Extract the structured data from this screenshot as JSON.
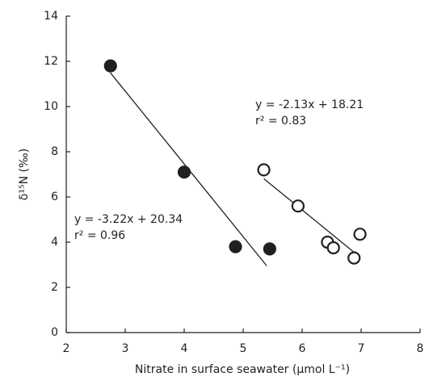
{
  "chart_data": {
    "type": "scatter",
    "x_label": "Nitrate in surface seawater (µmol L⁻¹)",
    "y_label": "δ¹⁵N (‰)",
    "xlim": [
      2,
      8
    ],
    "xticks": [
      2,
      3,
      4,
      5,
      6,
      7,
      8
    ],
    "ylim": [
      0,
      14
    ],
    "yticks": [
      0,
      2,
      4,
      6,
      8,
      10,
      12,
      14
    ],
    "grid": false,
    "series": [
      {
        "color": "#231f20",
        "fill": "#231f20",
        "x": [
          2.75,
          4.0,
          4.87,
          5.45
        ],
        "values": [
          11.8,
          7.1,
          3.8,
          3.7
        ]
      },
      {
        "color": "#231f20",
        "fill": "#ffffff",
        "x": [
          5.35,
          5.93,
          6.43,
          6.53,
          6.88,
          6.98
        ],
        "values": [
          7.2,
          5.6,
          4.0,
          3.75,
          3.3,
          4.35
        ]
      }
    ],
    "fit_lines": [
      {
        "x": [
          2.75,
          5.4
        ],
        "values": [
          11.49,
          2.95
        ]
      },
      {
        "x": [
          5.35,
          6.9
        ],
        "values": [
          6.81,
          3.51
        ]
      }
    ],
    "annotations": [
      {
        "equation": "y = -3.22x + 20.34",
        "r2": "r² = 0.96"
      },
      {
        "equation": "y = -2.13x + 18.21",
        "r2": "r² = 0.83"
      }
    ]
  }
}
